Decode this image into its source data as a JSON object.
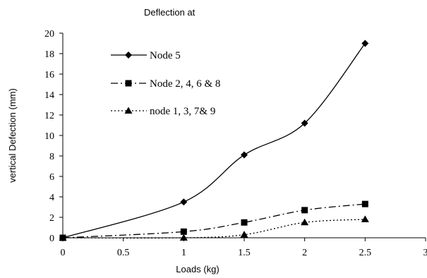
{
  "chart_data": {
    "type": "line",
    "title": "Deflection at",
    "xlabel": "Loads (kg)",
    "ylabel": "vertical Defection (mm)",
    "xlim": [
      0,
      3
    ],
    "ylim": [
      0,
      20
    ],
    "x_ticks": [
      "0",
      "0.5",
      "1",
      "1.5",
      "2",
      "2.5",
      "3"
    ],
    "y_ticks": [
      "0",
      "2",
      "4",
      "6",
      "8",
      "10",
      "12",
      "14",
      "16",
      "18",
      "20"
    ],
    "grid": false,
    "legend_position": "top-left",
    "series": [
      {
        "name": "Node 5",
        "marker": "diamond",
        "line_style": "solid",
        "x": [
          0,
          1,
          1.5,
          2,
          2.5
        ],
        "y": [
          0,
          3.5,
          8.1,
          11.2,
          19.0
        ]
      },
      {
        "name": "Node 2, 4, 6 & 8",
        "marker": "square",
        "line_style": "dash-dot",
        "x": [
          0,
          1,
          1.5,
          2,
          2.5
        ],
        "y": [
          0,
          0.6,
          1.5,
          2.7,
          3.3
        ]
      },
      {
        "name": "node 1, 3, 7& 9",
        "marker": "triangle",
        "line_style": "dotted",
        "x": [
          0,
          1,
          1.5,
          2,
          2.5
        ],
        "y": [
          0,
          0,
          0.3,
          1.5,
          1.8
        ]
      }
    ],
    "colors": {
      "line": "#000000",
      "background": "#ffffff"
    }
  }
}
